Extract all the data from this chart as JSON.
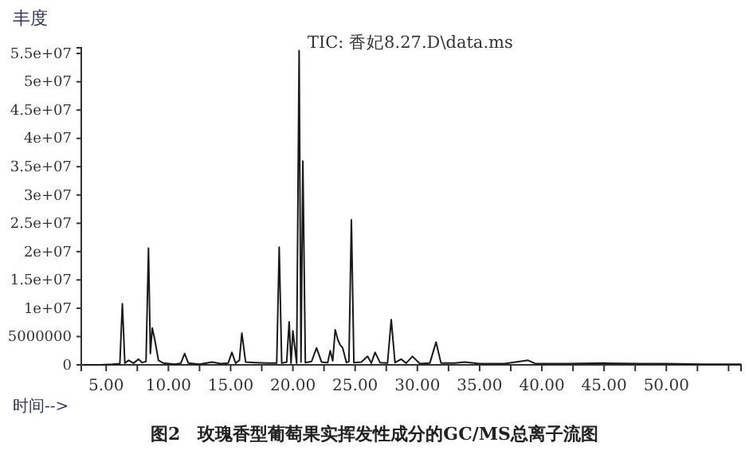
{
  "chart_data": {
    "type": "line",
    "title": "TIC: 香妃8.27.D\\data.ms",
    "ylabel": "丰度",
    "xlabel": "时间-->",
    "annotations": [
      "图2　玫瑰香型葡萄果实挥发性成分的GC/MS总离子流图"
    ],
    "series": [
      {
        "color": "#1a1a1a",
        "x": [
          3.2,
          4.5,
          5.5,
          6.1,
          6.3,
          6.5,
          6.8,
          7.2,
          7.6,
          7.9,
          8.2,
          8.4,
          8.55,
          8.7,
          8.9,
          9.2,
          9.6,
          10.5,
          11.0,
          11.3,
          11.6,
          12.5,
          13.5,
          14.2,
          14.8,
          15.1,
          15.4,
          15.7,
          15.9,
          16.2,
          17.0,
          18.0,
          18.7,
          18.9,
          19.1,
          19.5,
          19.7,
          19.85,
          20.0,
          20.3,
          20.5,
          20.65,
          20.8,
          21.0,
          21.5,
          21.9,
          22.3,
          22.8,
          23.0,
          23.2,
          23.4,
          23.6,
          23.8,
          24.0,
          24.3,
          24.5,
          24.7,
          24.9,
          25.5,
          26.0,
          26.3,
          26.6,
          27.0,
          27.6,
          27.9,
          28.2,
          28.7,
          29.1,
          29.6,
          30.2,
          31.0,
          31.5,
          31.9,
          33.0,
          33.8,
          35.0,
          37.0,
          38.9,
          39.5,
          42.0,
          45.0,
          48.0,
          50.0,
          53.0,
          56.0
        ],
        "values": [
          0,
          0,
          100000,
          200000,
          10800000,
          300000,
          800000,
          300000,
          1000000,
          400000,
          600000,
          20600000,
          2000000,
          6500000,
          4500000,
          800000,
          300000,
          100000,
          300000,
          2000000,
          300000,
          100000,
          500000,
          200000,
          300000,
          2200000,
          300000,
          800000,
          5600000,
          500000,
          400000,
          300000,
          300000,
          20800000,
          300000,
          500000,
          7600000,
          300000,
          6000000,
          300000,
          55500000,
          500000,
          36000000,
          400000,
          600000,
          3000000,
          500000,
          400000,
          2500000,
          700000,
          6200000,
          4500000,
          3500000,
          3000000,
          400000,
          600000,
          25600000,
          400000,
          500000,
          1500000,
          300000,
          2200000,
          400000,
          300000,
          8000000,
          400000,
          1000000,
          300000,
          1500000,
          200000,
          300000,
          4000000,
          300000,
          300000,
          500000,
          200000,
          200000,
          800000,
          200000,
          200000,
          300000,
          200000,
          200000,
          100000,
          100000
        ]
      }
    ],
    "xlim": [
      3,
      56
    ],
    "ylim": [
      0,
      56000000
    ],
    "xticks": [
      {
        "value": 5,
        "label": "5.00"
      },
      {
        "value": 7.5,
        "label": null
      },
      {
        "value": 10,
        "label": "10.00"
      },
      {
        "value": 12.5,
        "label": null
      },
      {
        "value": 15,
        "label": "15.00"
      },
      {
        "value": 17.5,
        "label": null
      },
      {
        "value": 20,
        "label": "20.00"
      },
      {
        "value": 22.5,
        "label": null
      },
      {
        "value": 25,
        "label": "25.00"
      },
      {
        "value": 27.5,
        "label": null
      },
      {
        "value": 30,
        "label": "30.00"
      },
      {
        "value": 32.5,
        "label": null
      },
      {
        "value": 35,
        "label": "35.00"
      },
      {
        "value": 37.5,
        "label": null
      },
      {
        "value": 40,
        "label": "40.00"
      },
      {
        "value": 42.5,
        "label": null
      },
      {
        "value": 45,
        "label": "45.00"
      },
      {
        "value": 47.5,
        "label": null
      },
      {
        "value": 50,
        "label": "50.00"
      },
      {
        "value": 52.5,
        "label": null
      },
      {
        "value": 55,
        "label": null
      }
    ],
    "yticks": [
      0,
      5000000,
      {
        "value": 10000000,
        "label": "1e+07"
      },
      {
        "value": 15000000,
        "label": "1.5e+07"
      },
      {
        "value": 20000000,
        "label": "2e+07"
      },
      {
        "value": 25000000,
        "label": "2.5e+07"
      },
      {
        "value": 30000000,
        "label": "3e+07"
      },
      {
        "value": 35000000,
        "label": "3.5e+07"
      },
      {
        "value": 40000000,
        "label": "4e+07"
      },
      {
        "value": 45000000,
        "label": "4.5e+07"
      },
      {
        "value": 50000000,
        "label": "5e+07"
      },
      {
        "value": 55000000,
        "label": "5.5e+07"
      }
    ],
    "grid": false,
    "marker": "none",
    "line_style": "solid"
  }
}
